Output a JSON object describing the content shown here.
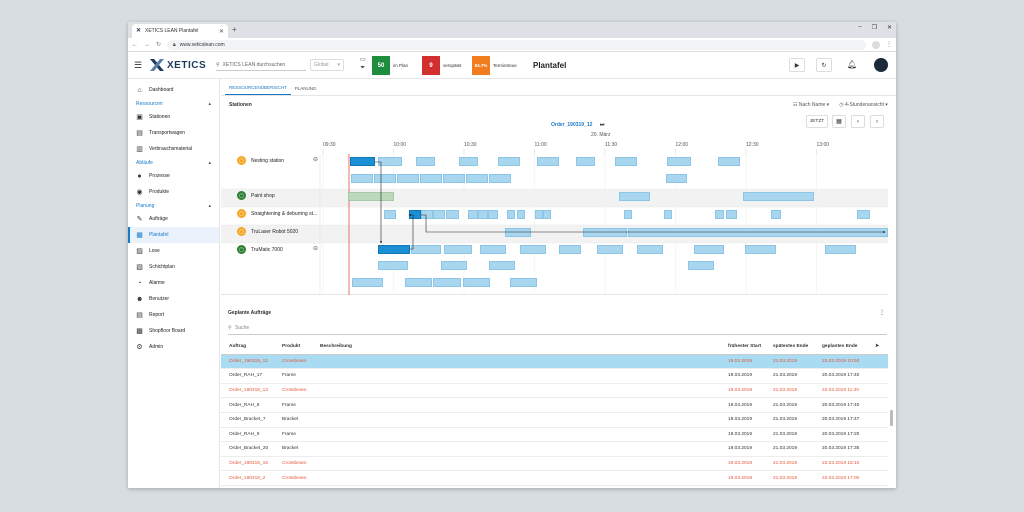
{
  "browser": {
    "tab_title": "XETICS LEAN Plantafel",
    "url": "www.xeticslean.com",
    "new_tab": "+",
    "controls": [
      "–",
      "❐",
      "✕"
    ]
  },
  "header": {
    "logo_text": "XETICS",
    "search_placeholder": "XETICS LEAN durchsuchen",
    "global_label": "Global",
    "stats": [
      {
        "value": "50",
        "label": "im Plan",
        "color": "#1e8e3e"
      },
      {
        "value": "9",
        "label": "verspätet",
        "color": "#d32f2f"
      },
      {
        "value": "84.7%",
        "label": "Termintreue",
        "color": "#f07c1e"
      }
    ],
    "page_title": "Plantafel",
    "buttons": [
      "▶",
      "↻"
    ]
  },
  "sidebar": {
    "items": [
      {
        "type": "item",
        "label": "Dashboard",
        "icon": "home-icon",
        "glyph": "⌂"
      },
      {
        "type": "section",
        "label": "Ressourcen"
      },
      {
        "type": "item",
        "label": "Stationen",
        "icon": "station-icon",
        "glyph": "▣"
      },
      {
        "type": "item",
        "label": "Transportwagen",
        "icon": "cart-icon",
        "glyph": "▤"
      },
      {
        "type": "item",
        "label": "Verbrauchsmaterial",
        "icon": "material-icon",
        "glyph": "▥"
      },
      {
        "type": "section",
        "label": "Abläufe"
      },
      {
        "type": "item",
        "label": "Prozesse",
        "icon": "process-icon",
        "glyph": "●"
      },
      {
        "type": "item",
        "label": "Produkte",
        "icon": "product-icon",
        "glyph": "◉"
      },
      {
        "type": "section",
        "label": "Planung"
      },
      {
        "type": "item",
        "label": "Aufträge",
        "icon": "orders-icon",
        "glyph": "✎"
      },
      {
        "type": "item",
        "label": "Plantafel",
        "icon": "plantafel-icon",
        "glyph": "▦",
        "active": true
      },
      {
        "type": "item",
        "label": "Lose",
        "icon": "lots-icon",
        "glyph": "▨"
      },
      {
        "type": "item",
        "label": "Schichtplan",
        "icon": "shift-icon",
        "glyph": "▧"
      },
      {
        "type": "item",
        "label": "Alarme",
        "icon": "alarm-icon",
        "glyph": "◔"
      },
      {
        "type": "item",
        "label": "Benutzer",
        "icon": "users-icon",
        "glyph": "☻"
      },
      {
        "type": "item",
        "label": "Report",
        "icon": "report-icon",
        "glyph": "▤"
      },
      {
        "type": "item",
        "label": "Shopfloor Board",
        "icon": "board-icon",
        "glyph": "▩"
      },
      {
        "type": "item",
        "label": "Admin",
        "icon": "admin-icon",
        "glyph": "⚙"
      }
    ]
  },
  "subtabs": [
    "RESSOURCENÜBERSICHT",
    "PLANUNG"
  ],
  "stations": {
    "title": "Stationen",
    "sort_label": "Nach Name",
    "view_label": "4-Stundenansicht",
    "order_link": "Order_190319_12",
    "date_label": "20. März",
    "today_button": "JETZT",
    "times": [
      "09:30",
      "10:00",
      "10:30",
      "11:00",
      "11:30",
      "12:00",
      "12:30",
      "13:00"
    ],
    "rows": [
      {
        "name": "Nesting station",
        "color": "#f5a623",
        "glyph": "▢"
      },
      {
        "name": "Paint shop",
        "color": "#2e7d32",
        "glyph": "▢"
      },
      {
        "name": "Straightening & deburring st...",
        "color": "#f5a623",
        "glyph": "▢"
      },
      {
        "name": "TruLaser Robot 5020",
        "color": "#f5a623",
        "glyph": "▢"
      },
      {
        "name": "TruMatic 7000",
        "color": "#2e7d32",
        "glyph": "▢"
      }
    ]
  },
  "orders": {
    "title": "Geplante Aufträge",
    "search_placeholder": "Suche",
    "columns": [
      "Auftrag",
      "Produkt",
      "Beschreibung",
      "frühester Start",
      "spätestes Ende",
      "geplantes Ende"
    ],
    "rows": [
      {
        "order": "Order_190319_12",
        "product": "Crossbeam",
        "desc": "",
        "start": "19.03.2019",
        "latest": "21.03.2019",
        "planned": "22.03.2019 10:50",
        "late": true,
        "selected": true
      },
      {
        "order": "Order_RAH_17",
        "product": "Frame",
        "desc": "",
        "start": "19.03.2019",
        "latest": "21.03.2019",
        "planned": "20.03.2019 17:40",
        "late": false
      },
      {
        "order": "Order_190319_13",
        "product": "Crossbeam",
        "desc": "",
        "start": "19.03.2019",
        "latest": "21.03.2019",
        "planned": "22.03.2019 11:40",
        "late": true
      },
      {
        "order": "Order_RAH_8",
        "product": "Frame",
        "desc": "",
        "start": "19.03.2019",
        "latest": "21.03.2019",
        "planned": "20.03.2019 17:40",
        "late": false
      },
      {
        "order": "Order_Bracket_7",
        "product": "Bracket",
        "desc": "",
        "start": "19.03.2019",
        "latest": "21.03.2019",
        "planned": "20.03.2019 17:47",
        "late": false
      },
      {
        "order": "Order_RAH_9",
        "product": "Frame",
        "desc": "",
        "start": "19.03.2019",
        "latest": "21.03.2019",
        "planned": "20.03.2019 17:20",
        "late": false
      },
      {
        "order": "Order_Bracket_20",
        "product": "Bracket",
        "desc": "",
        "start": "19.03.2019",
        "latest": "21.03.2019",
        "planned": "20.03.2019 17:35",
        "late": false
      },
      {
        "order": "Order_190319_15",
        "product": "Crossbeam",
        "desc": "",
        "start": "19.03.2019",
        "latest": "21.03.2019",
        "planned": "22.03.2019 16:10",
        "late": true
      },
      {
        "order": "Order_190319_2",
        "product": "Crossbeam",
        "desc": "",
        "start": "19.03.2019",
        "latest": "21.03.2019",
        "planned": "22.03.2019 17:00",
        "late": true
      }
    ]
  }
}
